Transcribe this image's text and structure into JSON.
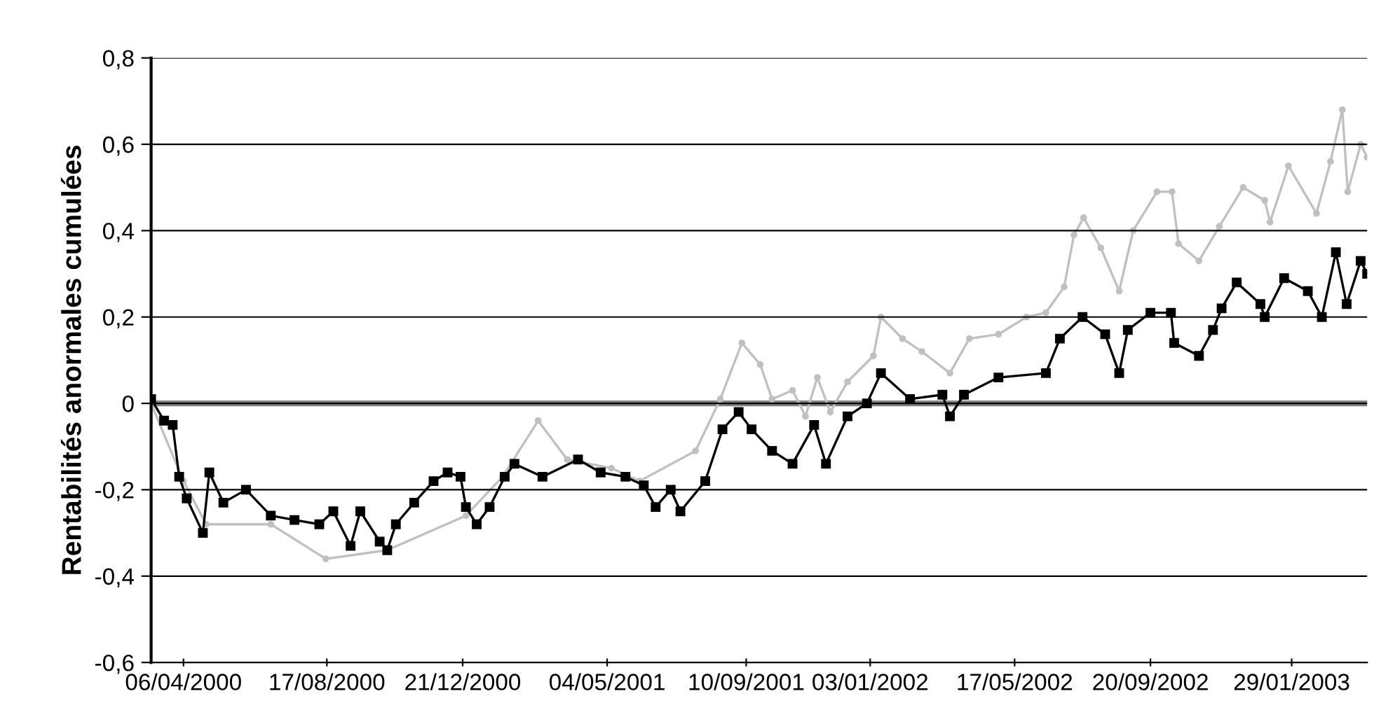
{
  "chart_data": {
    "type": "line",
    "ylabel": "Rentabilités anormales cumulées",
    "xlim": [
      "2000-03-07",
      "2003-04-09"
    ],
    "ylim": [
      -0.6,
      0.8
    ],
    "xticks": [
      {
        "value": "2000-04-06",
        "label": "06/04/2000"
      },
      {
        "value": "2000-08-17",
        "label": "17/08/2000"
      },
      {
        "value": "2000-12-21",
        "label": "21/12/2000"
      },
      {
        "value": "2001-05-04",
        "label": "04/05/2001"
      },
      {
        "value": "2001-09-10",
        "label": "10/09/2001"
      },
      {
        "value": "2002-01-03",
        "label": "03/01/2002"
      },
      {
        "value": "2002-05-17",
        "label": "17/05/2002"
      },
      {
        "value": "2002-09-20",
        "label": "20/09/2002"
      },
      {
        "value": "2003-01-29",
        "label": "29/01/2003"
      }
    ],
    "yticks": [
      {
        "value": -0.6,
        "label": "-0,6"
      },
      {
        "value": -0.4,
        "label": "-0,4"
      },
      {
        "value": -0.2,
        "label": "-0,2"
      },
      {
        "value": 0,
        "label": "0"
      },
      {
        "value": 0.2,
        "label": "0,2"
      },
      {
        "value": 0.4,
        "label": "0,4"
      },
      {
        "value": 0.6,
        "label": "0,6"
      },
      {
        "value": 0.8,
        "label": "0,8"
      }
    ],
    "grid": "y",
    "ref_lines": [
      {
        "axis": "y",
        "value": 0,
        "color": "#808080"
      }
    ],
    "series": [
      {
        "color": "#c0c0c0",
        "marker": "circle",
        "x": [
          "2000-03-07",
          "2000-04-06",
          "2000-04-27",
          "2000-06-26",
          "2000-08-16",
          "2000-10-12",
          "2000-12-24",
          "2001-01-27",
          "2001-03-01",
          "2001-03-28",
          "2001-05-08",
          "2001-06-03",
          "2001-07-25",
          "2001-08-17",
          "2001-09-06",
          "2001-09-23",
          "2001-10-04",
          "2001-10-23",
          "2001-11-04",
          "2001-11-15",
          "2001-11-27",
          "2001-12-13",
          "2002-01-06",
          "2002-01-13",
          "2002-02-02",
          "2002-02-20",
          "2002-03-18",
          "2002-04-05",
          "2002-05-02",
          "2002-05-28",
          "2002-06-15",
          "2002-07-02",
          "2002-07-11",
          "2002-07-20",
          "2002-08-05",
          "2002-08-22",
          "2002-09-04",
          "2002-09-26",
          "2002-10-10",
          "2002-10-16",
          "2002-11-04",
          "2002-11-23",
          "2002-12-15",
          "2003-01-04",
          "2003-01-09",
          "2003-01-26",
          "2003-02-21",
          "2003-03-06",
          "2003-03-17",
          "2003-03-22",
          "2003-04-03",
          "2003-04-09"
        ],
        "values": [
          0.0,
          -0.18,
          -0.28,
          -0.28,
          -0.36,
          -0.34,
          -0.26,
          -0.17,
          -0.04,
          -0.13,
          -0.15,
          -0.18,
          -0.11,
          0.01,
          0.14,
          0.09,
          0.01,
          0.03,
          -0.03,
          0.06,
          -0.02,
          0.05,
          0.11,
          0.2,
          0.15,
          0.12,
          0.07,
          0.15,
          0.16,
          0.2,
          0.21,
          0.27,
          0.39,
          0.43,
          0.36,
          0.26,
          0.4,
          0.49,
          0.49,
          0.37,
          0.33,
          0.41,
          0.5,
          0.47,
          0.42,
          0.55,
          0.44,
          0.56,
          0.68,
          0.49,
          0.6,
          0.57
        ]
      },
      {
        "color": "#000000",
        "marker": "square",
        "x": [
          "2000-03-07",
          "2000-03-19",
          "2000-03-27",
          "2000-04-02",
          "2000-04-09",
          "2000-04-24",
          "2000-04-30",
          "2000-05-13",
          "2000-06-03",
          "2000-06-26",
          "2000-07-18",
          "2000-08-10",
          "2000-08-23",
          "2000-09-08",
          "2000-09-17",
          "2000-10-05",
          "2000-10-12",
          "2000-10-20",
          "2000-11-06",
          "2000-11-24",
          "2000-12-07",
          "2000-12-19",
          "2000-12-24",
          "2001-01-03",
          "2001-01-15",
          "2001-01-29",
          "2001-02-07",
          "2001-03-05",
          "2001-04-07",
          "2001-04-28",
          "2001-05-21",
          "2001-06-07",
          "2001-06-18",
          "2001-07-02",
          "2001-07-11",
          "2001-08-03",
          "2001-08-19",
          "2001-09-03",
          "2001-09-15",
          "2001-10-04",
          "2001-10-23",
          "2001-11-12",
          "2001-11-23",
          "2001-12-13",
          "2001-12-31",
          "2002-01-13",
          "2002-02-09",
          "2002-03-11",
          "2002-03-18",
          "2002-03-31",
          "2002-05-02",
          "2002-06-15",
          "2002-06-28",
          "2002-07-19",
          "2002-08-09",
          "2002-08-22",
          "2002-08-30",
          "2002-09-20",
          "2002-10-09",
          "2002-10-12",
          "2002-11-04",
          "2002-11-17",
          "2002-11-25",
          "2002-12-09",
          "2002-12-31",
          "2003-01-04",
          "2003-01-22",
          "2003-02-13",
          "2003-02-26",
          "2003-03-11",
          "2003-03-21",
          "2003-04-03",
          "2003-04-09"
        ],
        "values": [
          0.01,
          -0.04,
          -0.05,
          -0.17,
          -0.22,
          -0.3,
          -0.16,
          -0.23,
          -0.2,
          -0.26,
          -0.27,
          -0.28,
          -0.25,
          -0.33,
          -0.25,
          -0.32,
          -0.34,
          -0.28,
          -0.23,
          -0.18,
          -0.16,
          -0.17,
          -0.24,
          -0.28,
          -0.24,
          -0.17,
          -0.14,
          -0.17,
          -0.13,
          -0.16,
          -0.17,
          -0.19,
          -0.24,
          -0.2,
          -0.25,
          -0.18,
          -0.06,
          -0.02,
          -0.06,
          -0.11,
          -0.14,
          -0.05,
          -0.14,
          -0.03,
          0.0,
          0.07,
          0.01,
          0.02,
          -0.03,
          0.02,
          0.06,
          0.07,
          0.15,
          0.2,
          0.16,
          0.07,
          0.17,
          0.21,
          0.21,
          0.14,
          0.11,
          0.17,
          0.22,
          0.28,
          0.23,
          0.2,
          0.29,
          0.26,
          0.2,
          0.35,
          0.23,
          0.33,
          0.3
        ]
      }
    ]
  }
}
